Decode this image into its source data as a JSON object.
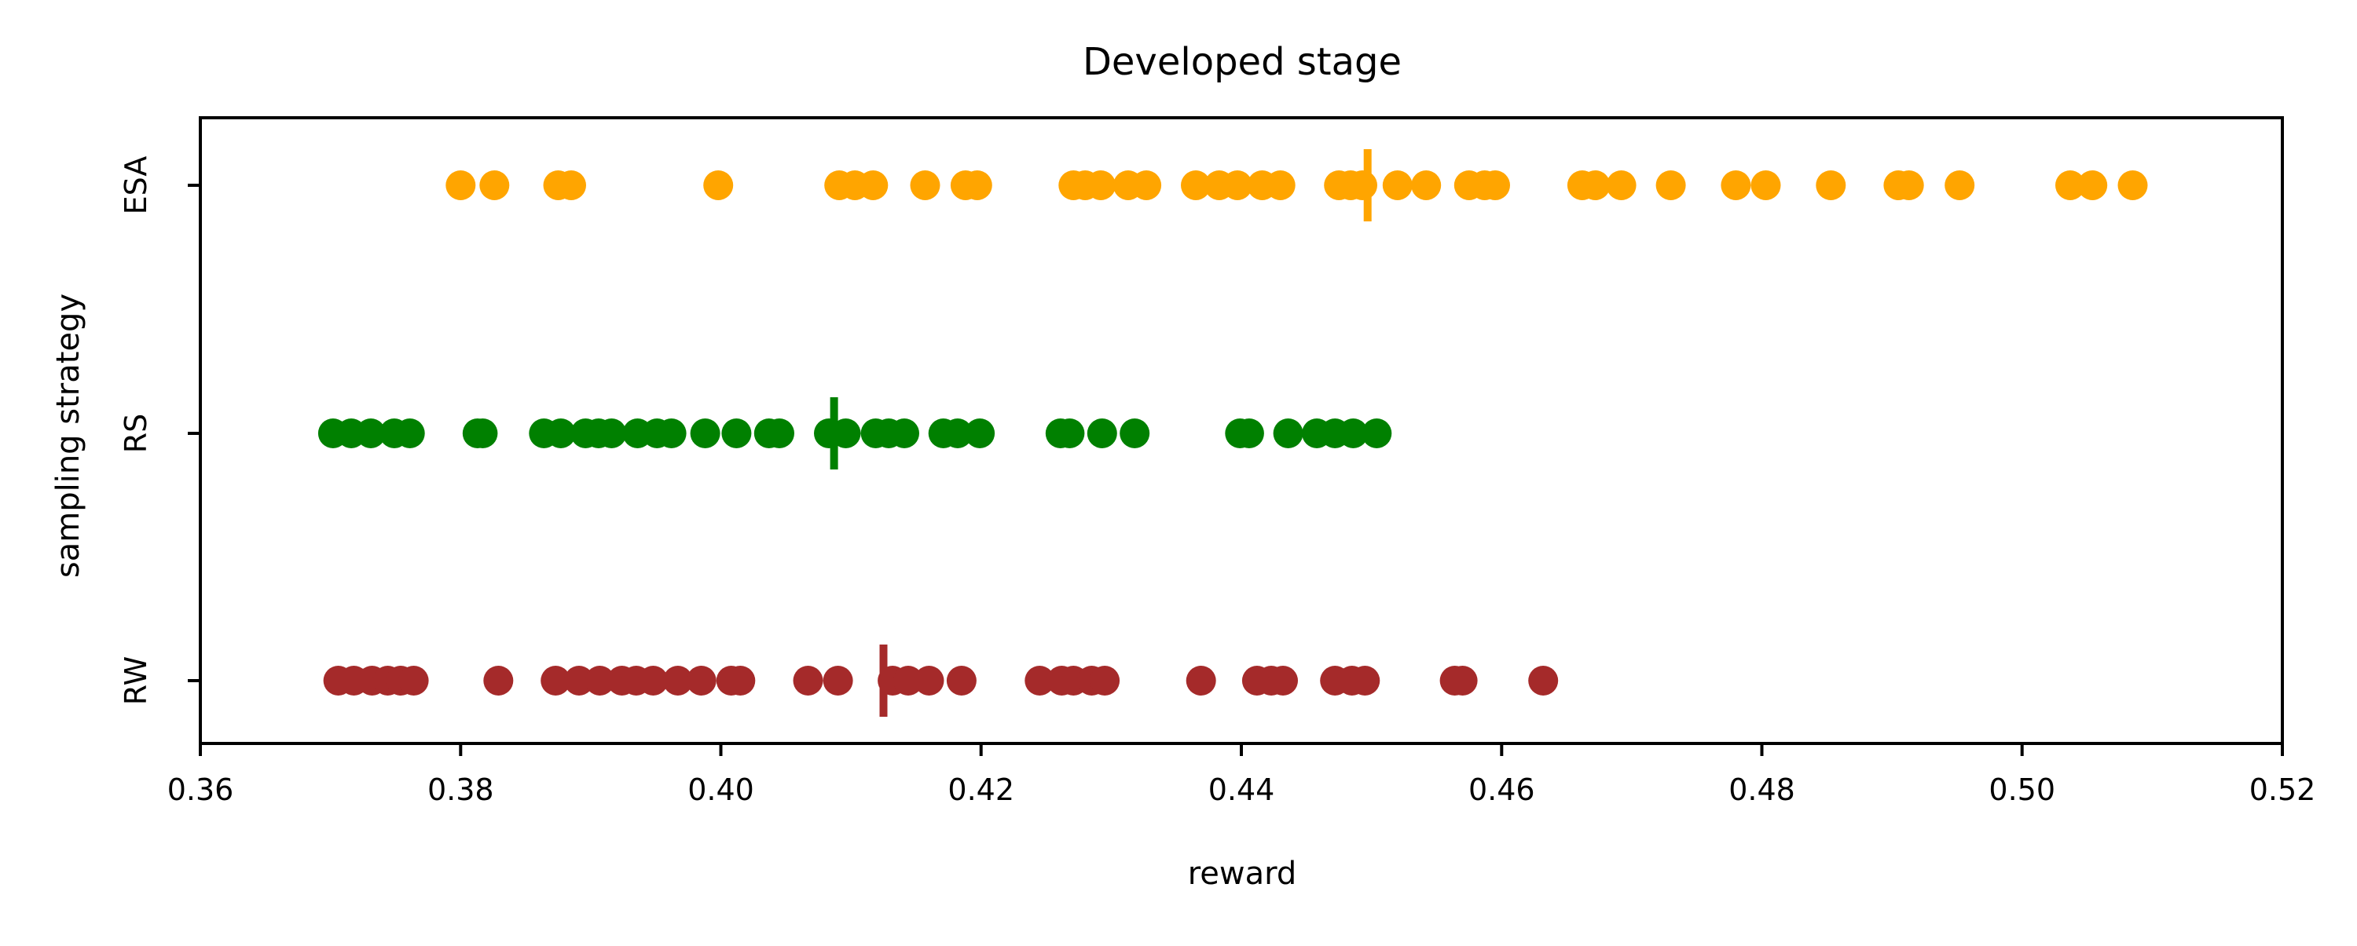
{
  "chart_data": {
    "type": "scatter",
    "title": "Developed stage",
    "xlabel": "reward",
    "ylabel": "sampling strategy",
    "xlim": [
      0.36,
      0.52
    ],
    "xticks": [
      "0.36",
      "0.38",
      "0.40",
      "0.42",
      "0.44",
      "0.46",
      "0.48",
      "0.50",
      "0.52"
    ],
    "xtick_values": [
      0.36,
      0.38,
      0.4,
      0.42,
      0.44,
      0.46,
      0.48,
      0.5,
      0.52
    ],
    "categories": [
      "ESA",
      "RS",
      "RW"
    ],
    "grid": false,
    "series": [
      {
        "category": "ESA",
        "color": "#FFA500",
        "marker": "circle",
        "mean": 0.4497,
        "values": [
          0.38,
          0.3826,
          0.3875,
          0.3885,
          0.3998,
          0.4091,
          0.4103,
          0.4117,
          0.4157,
          0.4188,
          0.4197,
          0.4271,
          0.428,
          0.4292,
          0.4313,
          0.4327,
          0.4365,
          0.4383,
          0.4397,
          0.4416,
          0.443,
          0.4475,
          0.4484,
          0.4493,
          0.452,
          0.4542,
          0.4575,
          0.4587,
          0.4595,
          0.4662,
          0.4672,
          0.4692,
          0.473,
          0.478,
          0.4803,
          0.4853,
          0.4905,
          0.4913,
          0.4952,
          0.5037,
          0.5054,
          0.5085
        ]
      },
      {
        "category": "RS",
        "color": "#008000",
        "marker": "circle",
        "mean": 0.4087,
        "values": [
          0.3702,
          0.3716,
          0.3731,
          0.3749,
          0.3761,
          0.3813,
          0.3817,
          0.3864,
          0.3877,
          0.3896,
          0.3906,
          0.3916,
          0.3936,
          0.3951,
          0.3962,
          0.3988,
          0.4012,
          0.4037,
          0.4045,
          0.4083,
          0.4096,
          0.4119,
          0.4129,
          0.4141,
          0.4171,
          0.4182,
          0.4199,
          0.4261,
          0.4268,
          0.4293,
          0.4318,
          0.4399,
          0.4406,
          0.4436,
          0.4458,
          0.4472,
          0.4486,
          0.4504
        ]
      },
      {
        "category": "RW",
        "color": "#A52A2A",
        "marker": "circle",
        "mean": 0.4125,
        "values": [
          0.3706,
          0.3718,
          0.3732,
          0.3744,
          0.3754,
          0.3764,
          0.3829,
          0.3873,
          0.3891,
          0.3907,
          0.3924,
          0.3935,
          0.3948,
          0.3967,
          0.3985,
          0.4008,
          0.4015,
          0.4067,
          0.409,
          0.4132,
          0.4144,
          0.416,
          0.4185,
          0.4245,
          0.4262,
          0.4271,
          0.4285,
          0.4295,
          0.4369,
          0.4412,
          0.4423,
          0.4432,
          0.4472,
          0.4485,
          0.4495,
          0.4564,
          0.457,
          0.4632
        ]
      }
    ]
  }
}
